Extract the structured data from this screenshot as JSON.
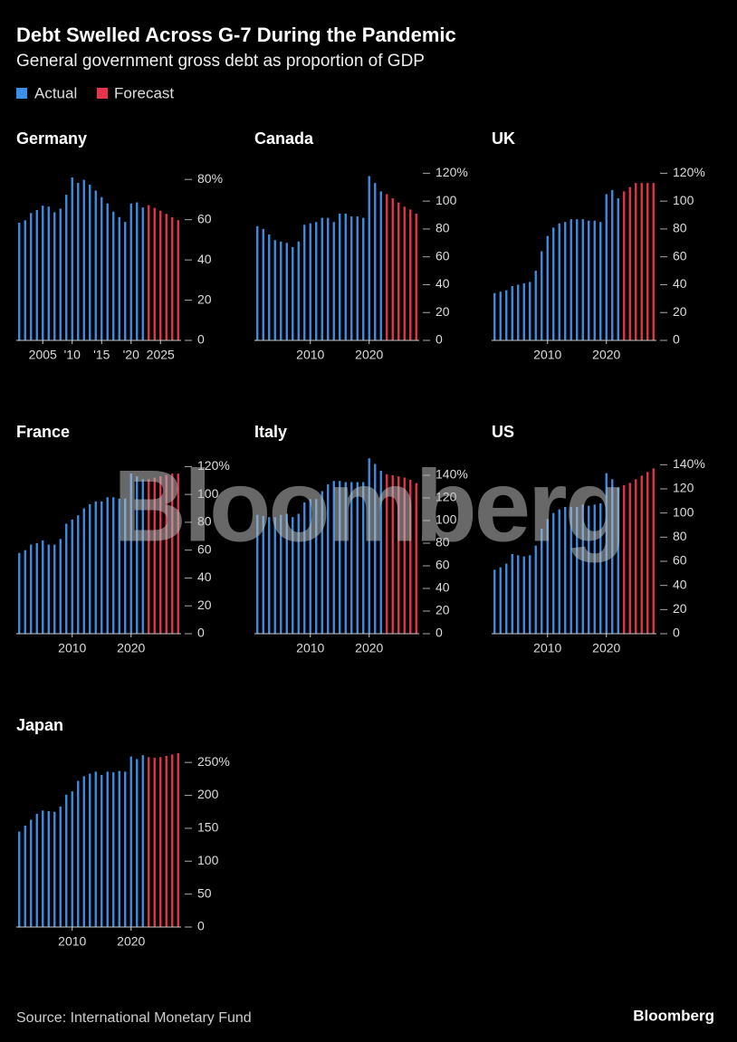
{
  "title": "Debt Swelled Across G-7 During the Pandemic",
  "subtitle": "General government gross debt as proportion of GDP",
  "watermark": "Bloomberg",
  "source": "Source: International Monetary Fund",
  "logo": "Bloomberg",
  "chart_data": [
    {
      "type": "bar",
      "title": "Germany",
      "x": [
        2001,
        2002,
        2003,
        2004,
        2005,
        2006,
        2007,
        2008,
        2009,
        2010,
        2011,
        2012,
        2013,
        2014,
        2015,
        2016,
        2017,
        2018,
        2019,
        2020,
        2021,
        2022,
        2023,
        2024,
        2025,
        2026,
        2027,
        2028
      ],
      "series": [
        {
          "name": "Actual",
          "color": "#3b8fe6",
          "values": [
            58.5,
            59.7,
            63.3,
            64.8,
            67.0,
            66.5,
            63.7,
            65.5,
            72.4,
            81.0,
            78.3,
            79.8,
            77.4,
            74.5,
            71.2,
            68.1,
            64.0,
            61.3,
            58.9,
            68.0,
            68.6,
            66.1,
            null,
            null,
            null,
            null,
            null,
            null
          ]
        },
        {
          "name": "Forecast",
          "color": "#e8334a",
          "values": [
            null,
            null,
            null,
            null,
            null,
            null,
            null,
            null,
            null,
            null,
            null,
            null,
            null,
            null,
            null,
            null,
            null,
            null,
            null,
            null,
            null,
            null,
            67.2,
            65.9,
            64.5,
            62.9,
            61.2,
            59.8
          ]
        }
      ],
      "xlim": [
        2000.5,
        2028.5
      ],
      "xticks": [
        2005,
        {
          "value": 2010,
          "label": "'10"
        },
        {
          "value": 2015,
          "label": "'15"
        },
        {
          "value": 2020,
          "label": "'20"
        },
        2025
      ],
      "ylim": [
        0,
        90
      ],
      "yticks": [
        0,
        20,
        40,
        60,
        {
          "value": 80,
          "label": "80%"
        }
      ]
    },
    {
      "type": "bar",
      "title": "Canada",
      "x": [
        2001,
        2002,
        2003,
        2004,
        2005,
        2006,
        2007,
        2008,
        2009,
        2010,
        2011,
        2012,
        2013,
        2014,
        2015,
        2016,
        2017,
        2018,
        2019,
        2020,
        2021,
        2022,
        2023,
        2024,
        2025,
        2026,
        2027,
        2028
      ],
      "series": [
        {
          "name": "Actual",
          "color": "#3b8fe6",
          "values": [
            82,
            80,
            76,
            72,
            71,
            70,
            67,
            71,
            83,
            84,
            85,
            88,
            88,
            85,
            91,
            91,
            89,
            89,
            88,
            118,
            113,
            107,
            null,
            null,
            null,
            null,
            null,
            null
          ]
        },
        {
          "name": "Forecast",
          "color": "#e8334a",
          "values": [
            null,
            null,
            null,
            null,
            null,
            null,
            null,
            null,
            null,
            null,
            null,
            null,
            null,
            null,
            null,
            null,
            null,
            null,
            null,
            null,
            null,
            null,
            105,
            102,
            99,
            96,
            94,
            91
          ]
        }
      ],
      "xlim": [
        2000.5,
        2028.5
      ],
      "xticks": [
        2010,
        2020
      ],
      "ylim": [
        0,
        130
      ],
      "yticks": [
        0,
        20,
        40,
        60,
        80,
        100,
        {
          "value": 120,
          "label": "120%"
        }
      ]
    },
    {
      "type": "bar",
      "title": "UK",
      "x": [
        2001,
        2002,
        2003,
        2004,
        2005,
        2006,
        2007,
        2008,
        2009,
        2010,
        2011,
        2012,
        2013,
        2014,
        2015,
        2016,
        2017,
        2018,
        2019,
        2020,
        2021,
        2022,
        2023,
        2024,
        2025,
        2026,
        2027,
        2028
      ],
      "series": [
        {
          "name": "Actual",
          "color": "#3b8fe6",
          "values": [
            34,
            35,
            36,
            39,
            40,
            41,
            42,
            50,
            64,
            75,
            81,
            84,
            85,
            87,
            87,
            87,
            86,
            86,
            85,
            105,
            108,
            102,
            null,
            null,
            null,
            null,
            null,
            null
          ]
        },
        {
          "name": "Forecast",
          "color": "#e8334a",
          "values": [
            null,
            null,
            null,
            null,
            null,
            null,
            null,
            null,
            null,
            null,
            null,
            null,
            null,
            null,
            null,
            null,
            null,
            null,
            null,
            null,
            null,
            null,
            107,
            110,
            113,
            113,
            113,
            113
          ]
        }
      ],
      "xlim": [
        2000.5,
        2028.5
      ],
      "xticks": [
        2010,
        2020
      ],
      "ylim": [
        0,
        130
      ],
      "yticks": [
        0,
        20,
        40,
        60,
        80,
        100,
        {
          "value": 120,
          "label": "120%"
        }
      ]
    },
    {
      "type": "bar",
      "title": "France",
      "x": [
        2001,
        2002,
        2003,
        2004,
        2005,
        2006,
        2007,
        2008,
        2009,
        2010,
        2011,
        2012,
        2013,
        2014,
        2015,
        2016,
        2017,
        2018,
        2019,
        2020,
        2021,
        2022,
        2023,
        2024,
        2025,
        2026,
        2027,
        2028
      ],
      "series": [
        {
          "name": "Actual",
          "color": "#3b8fe6",
          "values": [
            58,
            60,
            64,
            65,
            67,
            64,
            64,
            68,
            79,
            82,
            85,
            90,
            93,
            95,
            95,
            98,
            98,
            97,
            97,
            115,
            113,
            111,
            null,
            null,
            null,
            null,
            null,
            null
          ]
        },
        {
          "name": "Forecast",
          "color": "#e8334a",
          "values": [
            null,
            null,
            null,
            null,
            null,
            null,
            null,
            null,
            null,
            null,
            null,
            null,
            null,
            null,
            null,
            null,
            null,
            null,
            null,
            null,
            null,
            null,
            111,
            112,
            113,
            114,
            115,
            115
          ]
        }
      ],
      "xlim": [
        2000.5,
        2028.5
      ],
      "xticks": [
        2010,
        2020
      ],
      "ylim": [
        0,
        130
      ],
      "yticks": [
        0,
        20,
        40,
        60,
        80,
        100,
        {
          "value": 120,
          "label": "120%"
        }
      ]
    },
    {
      "type": "bar",
      "title": "Italy",
      "x": [
        2001,
        2002,
        2003,
        2004,
        2005,
        2006,
        2007,
        2008,
        2009,
        2010,
        2011,
        2012,
        2013,
        2014,
        2015,
        2016,
        2017,
        2018,
        2019,
        2020,
        2021,
        2022,
        2023,
        2024,
        2025,
        2026,
        2027,
        2028
      ],
      "series": [
        {
          "name": "Actual",
          "color": "#3b8fe6",
          "values": [
            105,
            104,
            103,
            103,
            105,
            106,
            103,
            106,
            116,
            119,
            119,
            126,
            132,
            135,
            135,
            134,
            134,
            134,
            134,
            155,
            150,
            144,
            null,
            null,
            null,
            null,
            null,
            null
          ]
        },
        {
          "name": "Forecast",
          "color": "#e8334a",
          "values": [
            null,
            null,
            null,
            null,
            null,
            null,
            null,
            null,
            null,
            null,
            null,
            null,
            null,
            null,
            null,
            null,
            null,
            null,
            null,
            null,
            null,
            null,
            141,
            140,
            139,
            138,
            136,
            133
          ]
        }
      ],
      "xlim": [
        2000.5,
        2028.5
      ],
      "xticks": [
        2010,
        2020
      ],
      "ylim": [
        0,
        160
      ],
      "yticks": [
        0,
        20,
        40,
        60,
        80,
        100,
        120,
        {
          "value": 140,
          "label": "140%"
        }
      ]
    },
    {
      "type": "bar",
      "title": "US",
      "x": [
        2001,
        2002,
        2003,
        2004,
        2005,
        2006,
        2007,
        2008,
        2009,
        2010,
        2011,
        2012,
        2013,
        2014,
        2015,
        2016,
        2017,
        2018,
        2019,
        2020,
        2021,
        2022,
        2023,
        2024,
        2025,
        2026,
        2027,
        2028
      ],
      "series": [
        {
          "name": "Actual",
          "color": "#3b8fe6",
          "values": [
            53,
            55,
            58,
            66,
            65,
            64,
            65,
            73,
            87,
            95,
            100,
            103,
            105,
            105,
            105,
            107,
            106,
            107,
            108,
            133,
            128,
            121,
            null,
            null,
            null,
            null,
            null,
            null
          ]
        },
        {
          "name": "Forecast",
          "color": "#e8334a",
          "values": [
            null,
            null,
            null,
            null,
            null,
            null,
            null,
            null,
            null,
            null,
            null,
            null,
            null,
            null,
            null,
            null,
            null,
            null,
            null,
            null,
            null,
            null,
            123,
            125,
            128,
            131,
            134,
            137
          ]
        }
      ],
      "xlim": [
        2000.5,
        2028.5
      ],
      "xticks": [
        2010,
        2020
      ],
      "ylim": [
        0,
        150
      ],
      "yticks": [
        0,
        20,
        40,
        60,
        80,
        100,
        120,
        {
          "value": 140,
          "label": "140%"
        }
      ]
    },
    {
      "type": "bar",
      "title": "Japan",
      "x": [
        2001,
        2002,
        2003,
        2004,
        2005,
        2006,
        2007,
        2008,
        2009,
        2010,
        2011,
        2012,
        2013,
        2014,
        2015,
        2016,
        2017,
        2018,
        2019,
        2020,
        2021,
        2022,
        2023,
        2024,
        2025,
        2026,
        2027,
        2028
      ],
      "series": [
        {
          "name": "Actual",
          "color": "#3b8fe6",
          "values": [
            145,
            154,
            163,
            172,
            177,
            176,
            175,
            183,
            201,
            206,
            222,
            229,
            233,
            236,
            231,
            236,
            235,
            237,
            236,
            259,
            255,
            261,
            null,
            null,
            null,
            null,
            null,
            null
          ]
        },
        {
          "name": "Forecast",
          "color": "#e8334a",
          "values": [
            null,
            null,
            null,
            null,
            null,
            null,
            null,
            null,
            null,
            null,
            null,
            null,
            null,
            null,
            null,
            null,
            null,
            null,
            null,
            null,
            null,
            null,
            258,
            257,
            258,
            260,
            262,
            264
          ]
        }
      ],
      "xlim": [
        2000.5,
        2028.5
      ],
      "xticks": [
        2010,
        2020
      ],
      "ylim": [
        0,
        275
      ],
      "yticks": [
        0,
        50,
        100,
        150,
        200,
        {
          "value": 250,
          "label": "250%"
        }
      ]
    }
  ]
}
